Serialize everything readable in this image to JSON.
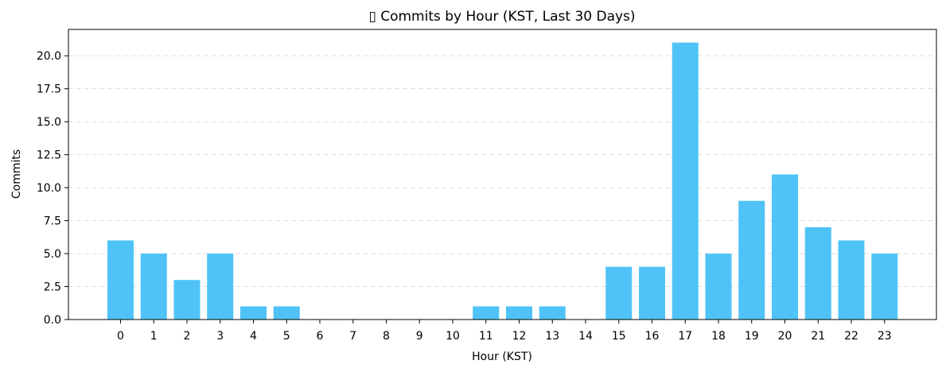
{
  "chart_data": {
    "type": "bar",
    "title": "▯ Commits by Hour (KST, Last 30 Days)",
    "xlabel": "Hour (KST)",
    "ylabel": "Commits",
    "categories": [
      "0",
      "1",
      "2",
      "3",
      "4",
      "5",
      "6",
      "7",
      "8",
      "9",
      "10",
      "11",
      "12",
      "13",
      "14",
      "15",
      "16",
      "17",
      "18",
      "19",
      "20",
      "21",
      "22",
      "23"
    ],
    "values": [
      6,
      5,
      3,
      5,
      1,
      1,
      0,
      0,
      0,
      0,
      0,
      1,
      1,
      1,
      0,
      4,
      4,
      21,
      5,
      9,
      11,
      7,
      6,
      5
    ],
    "ylim": [
      0,
      22
    ],
    "yticks": [
      "0.0",
      "2.5",
      "5.0",
      "7.5",
      "10.0",
      "12.5",
      "15.0",
      "17.5",
      "20.0"
    ],
    "grid": "horizontal dashed",
    "bar_color": "#4fc3f7"
  }
}
